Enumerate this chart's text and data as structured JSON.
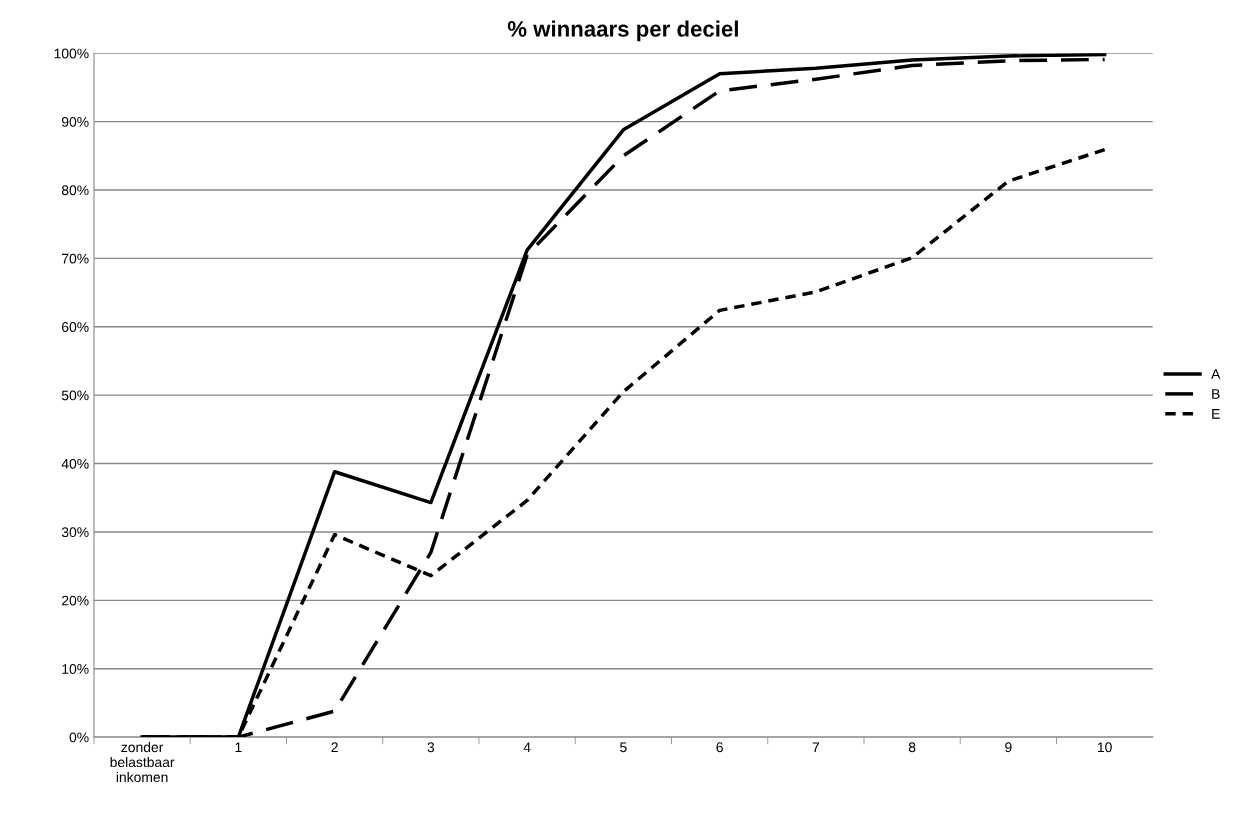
{
  "chart_data": {
    "type": "line",
    "title": "% winnaars per deciel",
    "categories": [
      "zonder\nbelastbaar\ninkomen",
      "1",
      "2",
      "3",
      "4",
      "5",
      "6",
      "7",
      "8",
      "9",
      "10"
    ],
    "series": [
      {
        "name": "A",
        "color": "#000000",
        "line_style": "solid",
        "values": [
          0,
          0,
          38.8,
          34.3,
          71.2,
          88.8,
          97.0,
          97.8,
          99.0,
          99.6,
          99.8
        ]
      },
      {
        "name": "B",
        "color": "#000000",
        "line_style": "dashed",
        "values": [
          0,
          0,
          3.8,
          27,
          70.5,
          85,
          94.5,
          96.2,
          98.2,
          98.9,
          99.1
        ]
      },
      {
        "name": "E",
        "color": "#000000",
        "line_style": "dotted",
        "values": [
          0,
          0,
          29.6,
          23.6,
          34.6,
          50.5,
          62.4,
          65.1,
          70.1,
          81.3,
          85.9
        ]
      }
    ],
    "ylim": [
      0,
      100
    ],
    "yticks": [
      {
        "value": 0,
        "label": "0%"
      },
      {
        "value": 10,
        "label": "10%"
      },
      {
        "value": 20,
        "label": "20%"
      },
      {
        "value": 30,
        "label": "30%"
      },
      {
        "value": 40,
        "label": "40%"
      },
      {
        "value": 50,
        "label": "50%"
      },
      {
        "value": 60,
        "label": "60%"
      },
      {
        "value": 70,
        "label": "70%"
      },
      {
        "value": 80,
        "label": "80%"
      },
      {
        "value": 90,
        "label": "90%"
      },
      {
        "value": 100,
        "label": "100%"
      }
    ],
    "grid": "y",
    "legend": "right",
    "marker": "none"
  }
}
